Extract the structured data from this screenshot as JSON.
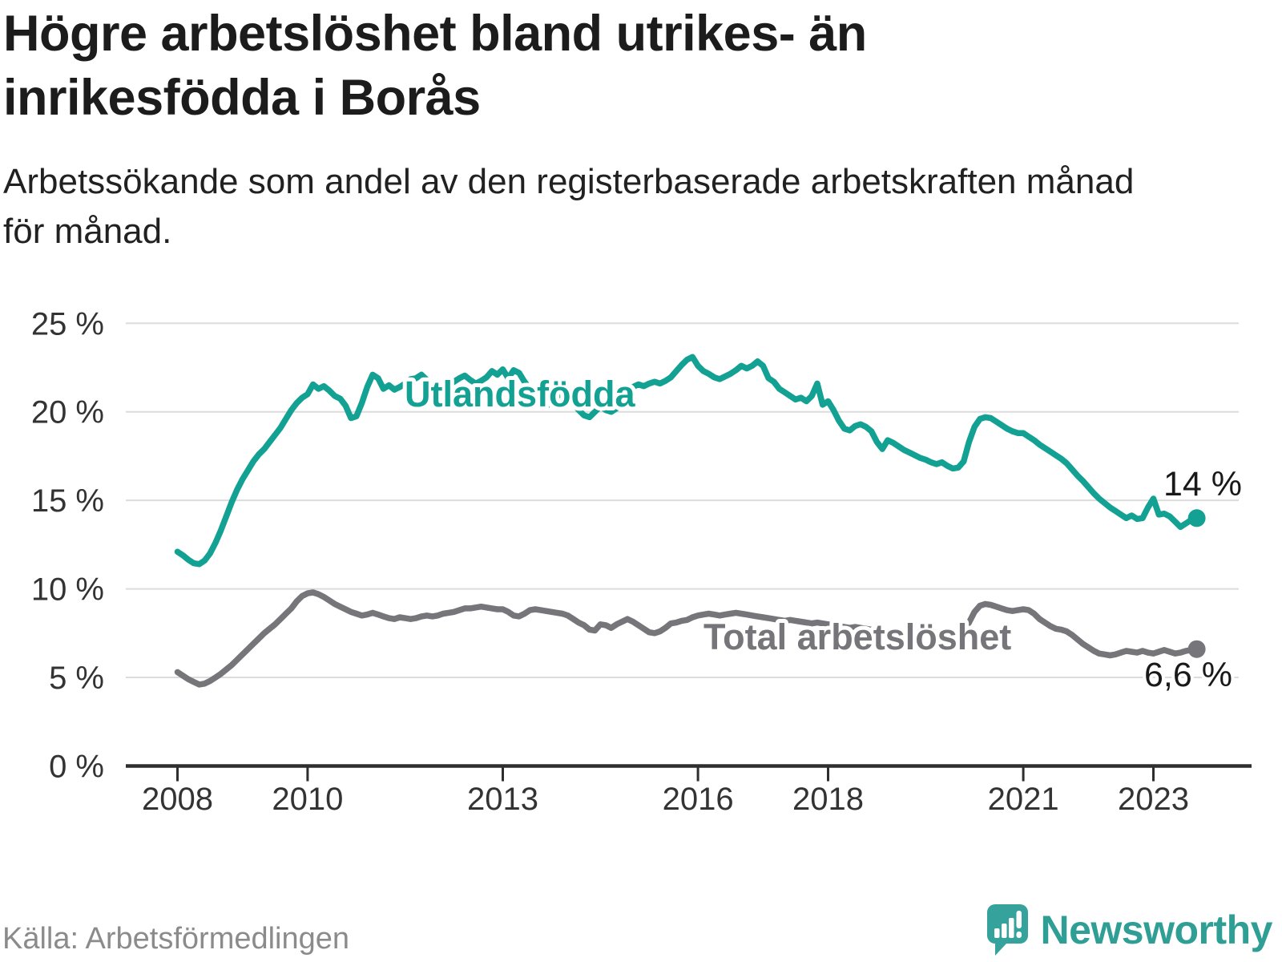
{
  "header": {
    "title_lines": [
      "Högre arbetslöshet bland utrikes- än",
      "inrikesfödda i Borås"
    ],
    "subtitle_lines": [
      "Arbetssökande som andel av den registerbaserade arbetskraften månad",
      "för månad."
    ]
  },
  "footer": {
    "source": "Källa: Arbetsförmedlingen",
    "brand": "Newsworthy"
  },
  "chart_data": {
    "type": "line",
    "start": "2008-01",
    "frequency": "monthly",
    "ylim": [
      0,
      25
    ],
    "grid": "horizontal",
    "legend_position": "inline-labels",
    "y_ticks": [
      {
        "label": "0 %",
        "value": 0
      },
      {
        "label": "5 %",
        "value": 5
      },
      {
        "label": "10 %",
        "value": 10
      },
      {
        "label": "15 %",
        "value": 15
      },
      {
        "label": "20 %",
        "value": 20
      },
      {
        "label": "25 %",
        "value": 25
      }
    ],
    "x_ticks": [
      {
        "label": "2008",
        "year": 2008
      },
      {
        "label": "2010",
        "year": 2010
      },
      {
        "label": "2013",
        "year": 2013
      },
      {
        "label": "2016",
        "year": 2016
      },
      {
        "label": "2018",
        "year": 2018
      },
      {
        "label": "2021",
        "year": 2021
      },
      {
        "label": "2023",
        "year": 2023
      }
    ],
    "series": [
      {
        "id": "utlandsfodda",
        "name": "Utlandsfödda",
        "color": "#12a192",
        "end_label": "14 %",
        "end_value": 14.0,
        "values": [
          12.1,
          11.9,
          11.65,
          11.45,
          11.4,
          11.6,
          12.0,
          12.6,
          13.3,
          14.1,
          14.9,
          15.6,
          16.2,
          16.7,
          17.2,
          17.6,
          17.9,
          18.3,
          18.7,
          19.1,
          19.6,
          20.1,
          20.5,
          20.8,
          21.0,
          21.55,
          21.3,
          21.45,
          21.2,
          20.9,
          20.75,
          20.35,
          19.65,
          19.75,
          20.5,
          21.4,
          22.1,
          21.9,
          21.3,
          21.5,
          21.25,
          21.4,
          21.6,
          21.85,
          21.9,
          22.1,
          21.8,
          21.6,
          21.4,
          21.25,
          21.5,
          21.7,
          21.9,
          22.05,
          21.8,
          21.6,
          21.75,
          21.95,
          22.3,
          22.1,
          22.4,
          21.9,
          22.35,
          22.2,
          21.7,
          21.3,
          20.9,
          20.5,
          20.3,
          20.6,
          20.9,
          21.0,
          20.8,
          20.5,
          20.1,
          19.8,
          19.7,
          20.0,
          20.3,
          20.1,
          20.0,
          20.2,
          20.5,
          20.8,
          21.4,
          21.55,
          21.45,
          21.6,
          21.7,
          21.6,
          21.75,
          21.95,
          22.3,
          22.65,
          22.95,
          23.1,
          22.6,
          22.3,
          22.15,
          21.95,
          21.85,
          22.0,
          22.15,
          22.35,
          22.6,
          22.45,
          22.6,
          22.85,
          22.6,
          21.9,
          21.7,
          21.3,
          21.1,
          20.9,
          20.7,
          20.8,
          20.6,
          20.9,
          21.6,
          20.4,
          20.6,
          20.1,
          19.5,
          19.05,
          18.95,
          19.2,
          19.3,
          19.15,
          18.9,
          18.3,
          17.9,
          18.4,
          18.25,
          18.05,
          17.85,
          17.7,
          17.55,
          17.4,
          17.3,
          17.15,
          17.05,
          17.15,
          16.95,
          16.8,
          16.85,
          17.2,
          18.3,
          19.15,
          19.6,
          19.7,
          19.65,
          19.45,
          19.25,
          19.05,
          18.9,
          18.8,
          18.8,
          18.6,
          18.4,
          18.15,
          17.95,
          17.75,
          17.55,
          17.35,
          17.1,
          16.75,
          16.4,
          16.1,
          15.75,
          15.4,
          15.1,
          14.85,
          14.6,
          14.4,
          14.2,
          14.0,
          14.15,
          13.95,
          14.0,
          14.6,
          15.1,
          14.2,
          14.25,
          14.1,
          13.8,
          13.5,
          13.7,
          13.9,
          14.0
        ]
      },
      {
        "id": "total",
        "name": "Total arbetslöshet",
        "color": "#75757a",
        "end_label": "6,6 %",
        "end_value": 6.6,
        "values": [
          5.3,
          5.1,
          4.9,
          4.75,
          4.6,
          4.65,
          4.8,
          5.0,
          5.2,
          5.45,
          5.7,
          6.0,
          6.3,
          6.6,
          6.9,
          7.2,
          7.5,
          7.75,
          8.0,
          8.3,
          8.6,
          8.9,
          9.3,
          9.6,
          9.75,
          9.8,
          9.7,
          9.55,
          9.35,
          9.15,
          9.0,
          8.85,
          8.7,
          8.6,
          8.5,
          8.55,
          8.65,
          8.55,
          8.45,
          8.35,
          8.3,
          8.4,
          8.35,
          8.3,
          8.35,
          8.45,
          8.5,
          8.45,
          8.5,
          8.6,
          8.65,
          8.7,
          8.8,
          8.9,
          8.9,
          8.95,
          9.0,
          8.95,
          8.9,
          8.85,
          8.85,
          8.7,
          8.5,
          8.45,
          8.6,
          8.8,
          8.85,
          8.8,
          8.75,
          8.7,
          8.65,
          8.6,
          8.5,
          8.3,
          8.1,
          7.95,
          7.7,
          7.65,
          8.0,
          7.95,
          7.8,
          8.0,
          8.15,
          8.3,
          8.15,
          7.95,
          7.75,
          7.55,
          7.5,
          7.6,
          7.8,
          8.05,
          8.1,
          8.2,
          8.25,
          8.4,
          8.5,
          8.55,
          8.6,
          8.55,
          8.5,
          8.55,
          8.6,
          8.65,
          8.6,
          8.55,
          8.5,
          8.45,
          8.4,
          8.35,
          8.3,
          8.25,
          8.2,
          8.25,
          8.2,
          8.15,
          8.1,
          8.05,
          8.1,
          8.05,
          8.0,
          7.95,
          7.9,
          7.85,
          7.8,
          7.85,
          7.8,
          7.75,
          7.7,
          7.6,
          7.55,
          7.6,
          7.55,
          7.5,
          7.45,
          7.5,
          7.45,
          7.4,
          7.45,
          7.4,
          7.35,
          7.4,
          7.45,
          7.5,
          7.55,
          7.7,
          8.1,
          8.7,
          9.05,
          9.15,
          9.1,
          9.0,
          8.9,
          8.8,
          8.75,
          8.8,
          8.85,
          8.8,
          8.6,
          8.3,
          8.1,
          7.9,
          7.75,
          7.7,
          7.6,
          7.4,
          7.15,
          6.9,
          6.7,
          6.5,
          6.35,
          6.3,
          6.25,
          6.3,
          6.4,
          6.5,
          6.45,
          6.4,
          6.5,
          6.4,
          6.35,
          6.45,
          6.55,
          6.45,
          6.35,
          6.4,
          6.5,
          6.55,
          6.6
        ]
      }
    ]
  }
}
